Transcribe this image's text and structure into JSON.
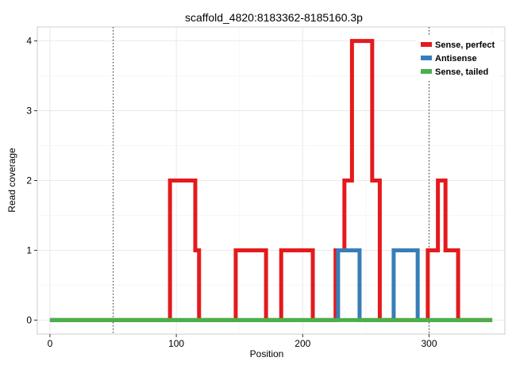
{
  "chart_data": {
    "type": "line",
    "title": "scaffold_4820:8183362-8185160.3p",
    "xlabel": "Position",
    "ylabel": "Read coverage",
    "xlim": [
      -10,
      360
    ],
    "ylim": [
      -0.2,
      4.2
    ],
    "xticks": [
      0,
      100,
      200,
      300
    ],
    "yticks": [
      0,
      1,
      2,
      3,
      4
    ],
    "tick_labels_x": [
      "0",
      "100",
      "200",
      "300"
    ],
    "tick_labels_y": [
      "0",
      "1",
      "2",
      "3",
      "4"
    ],
    "grid": true,
    "vlines": [
      50,
      300
    ],
    "legend_position": "top-right",
    "series": [
      {
        "name": "Sense, perfect",
        "color": "#e41a1c",
        "points": [
          [
            0,
            0
          ],
          [
            95,
            0
          ],
          [
            95,
            2
          ],
          [
            115,
            2
          ],
          [
            115,
            1
          ],
          [
            118,
            1
          ],
          [
            118,
            0
          ],
          [
            147,
            0
          ],
          [
            147,
            1
          ],
          [
            171,
            1
          ],
          [
            171,
            0
          ],
          [
            183,
            0
          ],
          [
            183,
            1
          ],
          [
            208,
            1
          ],
          [
            208,
            0
          ],
          [
            226,
            0
          ],
          [
            226,
            1
          ],
          [
            233,
            1
          ],
          [
            233,
            2
          ],
          [
            239,
            2
          ],
          [
            239,
            4
          ],
          [
            255,
            4
          ],
          [
            255,
            2
          ],
          [
            261,
            2
          ],
          [
            261,
            0
          ],
          [
            299,
            0
          ],
          [
            299,
            1
          ],
          [
            307,
            1
          ],
          [
            307,
            2
          ],
          [
            313,
            2
          ],
          [
            313,
            1
          ],
          [
            323,
            1
          ],
          [
            323,
            0
          ],
          [
            350,
            0
          ]
        ]
      },
      {
        "name": "Antisense",
        "color": "#377eb8",
        "points": [
          [
            0,
            0
          ],
          [
            228,
            0
          ],
          [
            228,
            1
          ],
          [
            245,
            1
          ],
          [
            245,
            0
          ],
          [
            272,
            0
          ],
          [
            272,
            1
          ],
          [
            291,
            1
          ],
          [
            291,
            0
          ],
          [
            350,
            0
          ]
        ]
      },
      {
        "name": "Sense, tailed",
        "color": "#4daf4a",
        "points": [
          [
            0,
            0
          ],
          [
            350,
            0
          ]
        ]
      }
    ]
  }
}
